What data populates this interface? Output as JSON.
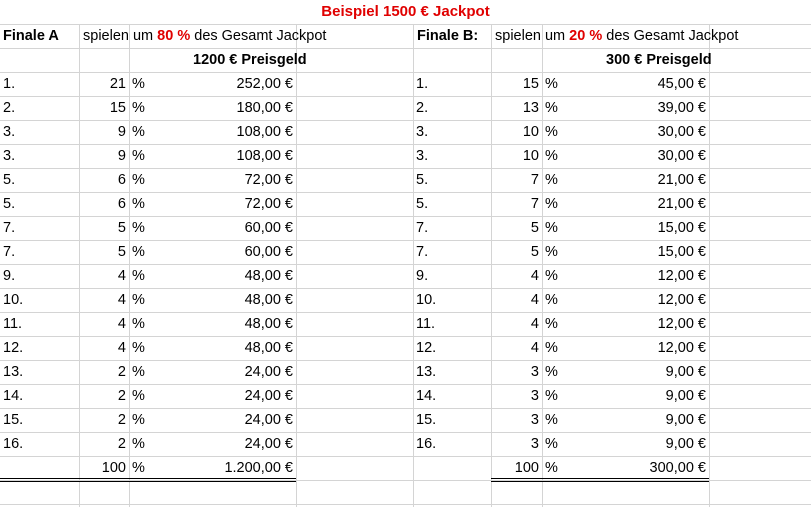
{
  "title": "Beispiel 1500 € Jackpot",
  "finale_a": {
    "label": "Finale A",
    "text_pre": "spielen um",
    "pct": "80 %",
    "text_post": "des Gesamt Jackpot",
    "prize_header": "1200 € Preisgeld",
    "rows": [
      {
        "rank": "1.",
        "pct": "21",
        "unit": "%",
        "amount": "252,00 €"
      },
      {
        "rank": "2.",
        "pct": "15",
        "unit": "%",
        "amount": "180,00 €"
      },
      {
        "rank": "3.",
        "pct": "9",
        "unit": "%",
        "amount": "108,00 €"
      },
      {
        "rank": "3.",
        "pct": "9",
        "unit": "%",
        "amount": "108,00 €"
      },
      {
        "rank": "5.",
        "pct": "6",
        "unit": "%",
        "amount": "72,00 €"
      },
      {
        "rank": "5.",
        "pct": "6",
        "unit": "%",
        "amount": "72,00 €"
      },
      {
        "rank": "7.",
        "pct": "5",
        "unit": "%",
        "amount": "60,00 €"
      },
      {
        "rank": "7.",
        "pct": "5",
        "unit": "%",
        "amount": "60,00 €"
      },
      {
        "rank": "9.",
        "pct": "4",
        "unit": "%",
        "amount": "48,00 €"
      },
      {
        "rank": "10.",
        "pct": "4",
        "unit": "%",
        "amount": "48,00 €"
      },
      {
        "rank": "11.",
        "pct": "4",
        "unit": "%",
        "amount": "48,00 €"
      },
      {
        "rank": "12.",
        "pct": "4",
        "unit": "%",
        "amount": "48,00 €"
      },
      {
        "rank": "13.",
        "pct": "2",
        "unit": "%",
        "amount": "24,00 €"
      },
      {
        "rank": "14.",
        "pct": "2",
        "unit": "%",
        "amount": "24,00 €"
      },
      {
        "rank": "15.",
        "pct": "2",
        "unit": "%",
        "amount": "24,00 €"
      },
      {
        "rank": "16.",
        "pct": "2",
        "unit": "%",
        "amount": "24,00 €"
      }
    ],
    "total": {
      "pct": "100",
      "unit": "%",
      "amount": "1.200,00 €"
    }
  },
  "finale_b": {
    "label": "Finale B:",
    "text_pre": "spielen um",
    "pct": "20 %",
    "text_post": "des Gesamt Jackpot",
    "prize_header": "300 € Preisgeld",
    "rows": [
      {
        "rank": "1.",
        "pct": "15",
        "unit": "%",
        "amount": "45,00 €"
      },
      {
        "rank": "2.",
        "pct": "13",
        "unit": "%",
        "amount": "39,00 €"
      },
      {
        "rank": "3.",
        "pct": "10",
        "unit": "%",
        "amount": "30,00 €"
      },
      {
        "rank": "3.",
        "pct": "10",
        "unit": "%",
        "amount": "30,00 €"
      },
      {
        "rank": "5.",
        "pct": "7",
        "unit": "%",
        "amount": "21,00 €"
      },
      {
        "rank": "5.",
        "pct": "7",
        "unit": "%",
        "amount": "21,00 €"
      },
      {
        "rank": "7.",
        "pct": "5",
        "unit": "%",
        "amount": "15,00 €"
      },
      {
        "rank": "7.",
        "pct": "5",
        "unit": "%",
        "amount": "15,00 €"
      },
      {
        "rank": "9.",
        "pct": "4",
        "unit": "%",
        "amount": "12,00 €"
      },
      {
        "rank": "10.",
        "pct": "4",
        "unit": "%",
        "amount": "12,00 €"
      },
      {
        "rank": "11.",
        "pct": "4",
        "unit": "%",
        "amount": "12,00 €"
      },
      {
        "rank": "12.",
        "pct": "4",
        "unit": "%",
        "amount": "12,00 €"
      },
      {
        "rank": "13.",
        "pct": "3",
        "unit": "%",
        "amount": "9,00 €"
      },
      {
        "rank": "14.",
        "pct": "3",
        "unit": "%",
        "amount": "9,00 €"
      },
      {
        "rank": "15.",
        "pct": "3",
        "unit": "%",
        "amount": "9,00 €"
      },
      {
        "rank": "16.",
        "pct": "3",
        "unit": "%",
        "amount": "9,00 €"
      }
    ],
    "total": {
      "pct": "100",
      "unit": "%",
      "amount": "300,00 €"
    }
  }
}
